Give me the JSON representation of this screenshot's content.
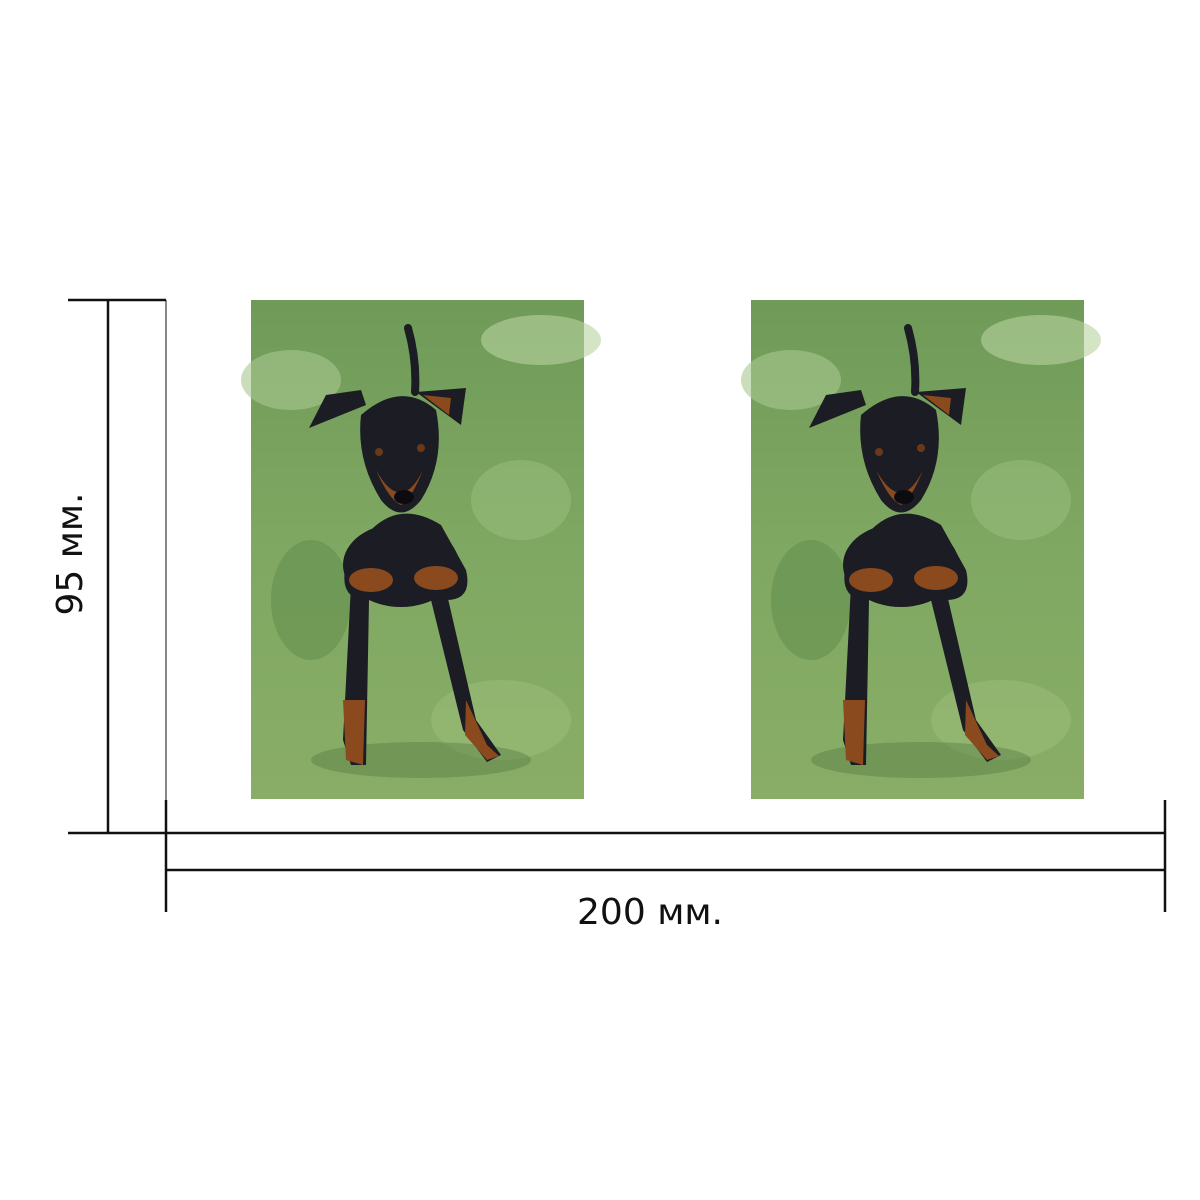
{
  "height_label": "95 мм.",
  "width_label": "200 мм."
}
